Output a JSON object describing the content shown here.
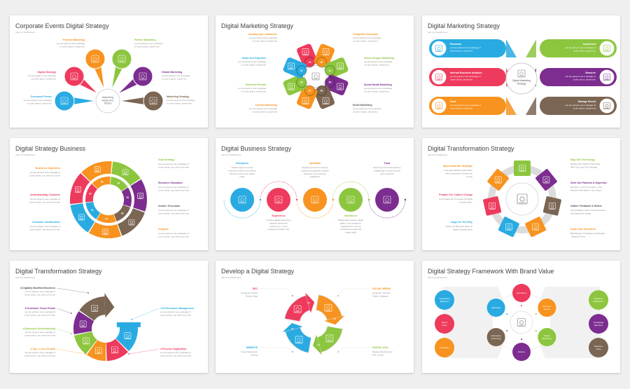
{
  "colors": {
    "blue": "#29abe2",
    "red": "#ee3a5c",
    "orange": "#f7931e",
    "green": "#8cc63f",
    "purple": "#7c2d8f",
    "brown": "#7b6553",
    "dark": "#555555"
  },
  "slides": [
    {
      "title": "Corporate Events Digital Strategy",
      "subtitle": "Add Your Subtitle Here",
      "center": [
        "Marketing",
        "Adapt And",
        "Tactics"
      ],
      "items": [
        {
          "label": "Product Marketing",
          "color": "orange",
          "icon": "network-icon",
          "desc": [
            "you are going to use a passage",
            "of Lorem Ipsum, simple text"
          ]
        },
        {
          "label": "Partner Marketing",
          "color": "green",
          "icon": "hub-icon",
          "desc": [
            "you are going to use a passage",
            "of Lorem Ipsum, simple text"
          ]
        },
        {
          "label": "Digital Strategy",
          "color": "red",
          "icon": "document-icon",
          "desc": [
            "you are going to use a passage",
            "of Lorem Ipsum, simple text"
          ]
        },
        {
          "label": "Global Marketing",
          "color": "purple",
          "icon": "globe-icon",
          "desc": [
            "you are going to use a passage",
            "of Lorem Ipsum, simple text"
          ]
        },
        {
          "label": "Document Printer",
          "color": "blue",
          "icon": "calendar-icon",
          "desc": [
            "you are going to use a passage",
            "of Lorem Ipsum, simple text"
          ]
        },
        {
          "label": "Marketing Strategy",
          "color": "brown",
          "icon": "chart-icon",
          "desc": [
            "you are going to use a passage",
            "of Lorem Ipsum, simple text"
          ]
        }
      ]
    },
    {
      "title": "Digital Marketing Strategy",
      "subtitle": "",
      "items": [
        {
          "label": "Identify your customers",
          "color": "orange",
          "petal": "red",
          "num": "02",
          "desc": [
            "you are going to use a passage",
            "of Lorem Ipsum, simple text"
          ]
        },
        {
          "label": "Competitor Research",
          "color": "orange",
          "petal": "orange",
          "num": "03",
          "desc": [
            "you are going to use a passage",
            "of Lorem Ipsum, simple text"
          ]
        },
        {
          "label": "Search Engine Marketing",
          "color": "green",
          "petal": "green",
          "num": "04",
          "desc": [
            "you are going to use a passage",
            "of Lorem Ipsum, simple text"
          ]
        },
        {
          "label": "Social Media Marketing",
          "color": "purple",
          "petal": "purple",
          "num": "05",
          "desc": [
            "you are going to use a passage",
            "of Lorem Ipsum, simple text"
          ]
        },
        {
          "label": "Email Marketing",
          "color": "dark",
          "petal": "brown",
          "num": "06",
          "desc": [
            "you are going to use a passage",
            "of Lorem Ipsum, simple text"
          ]
        },
        {
          "label": "Content Marketing",
          "color": "orange",
          "petal": "orange",
          "num": "07",
          "desc": [
            "you are going to use a passage",
            "of Lorem Ipsum, simple text"
          ]
        },
        {
          "label": "Relevant Results",
          "color": "green",
          "petal": "green",
          "num": "08",
          "desc": [
            "you are going to use a passage",
            "of Lorem Ipsum, simple text"
          ]
        },
        {
          "label": "Goals and Objective",
          "color": "blue",
          "petal": "blue",
          "num": "01",
          "desc": [
            "you are going to use a passage",
            "of Lorem Ipsum, simple text"
          ]
        }
      ]
    },
    {
      "title": "Digital Marketing Strategy",
      "subtitle": "Add Your Subtitle Here",
      "center": [
        "Digital Marketing",
        "Strategy"
      ],
      "items": [
        {
          "label": "Research",
          "color": "blue",
          "desc": [
            "you are going to use a passage of",
            "Lorem Ipsum, simple text"
          ]
        },
        {
          "label": "Internal Business Analysis",
          "color": "red",
          "desc": [
            "you are going to use a passage of",
            "Lorem Ipsum, simple text"
          ]
        },
        {
          "label": "Goal",
          "color": "orange",
          "desc": [
            "you are going to use a passage of",
            "Lorem Ipsum, simple text"
          ]
        },
        {
          "label": "Implement",
          "color": "green",
          "desc": [
            "you are going to use a passage of",
            "Lorem Ipsum, simple text"
          ]
        },
        {
          "label": "Measure",
          "color": "purple",
          "desc": [
            "you are going to use a passage of",
            "Lorem Ipsum, simple text"
          ]
        },
        {
          "label": "Manage Result",
          "color": "brown",
          "desc": [
            "you are going to use a passage of",
            "Lorem Ipsum, simple text"
          ]
        }
      ]
    },
    {
      "title": "Digital Strategy Business",
      "subtitle": "Add Your Subtitle Here",
      "segments": [
        {
          "color": "orange",
          "num": "03"
        },
        {
          "color": "green",
          "num": "04"
        },
        {
          "color": "purple",
          "num": "05"
        },
        {
          "color": "brown",
          "num": "06"
        },
        {
          "color": "orange",
          "num": "07"
        },
        {
          "color": "blue",
          "num": "01"
        },
        {
          "color": "red",
          "num": "02"
        }
      ],
      "items": [
        {
          "label": "Business Objectives",
          "color": "orange",
          "desc": [
            "you are going to use a passage of",
            "Lorem Ipsum, you need to be sure"
          ]
        },
        {
          "label": "Understanding Customer",
          "color": "red",
          "desc": [
            "you are going to use a passage of",
            "Lorem Ipsum, you need to be sure"
          ]
        },
        {
          "label": "Customer Identification",
          "color": "blue",
          "desc": [
            "you are going to use a passage of",
            "Lorem Ipsum, you need to be sure"
          ]
        },
        {
          "label": "Goal Strategy",
          "color": "green",
          "desc": [
            "you are going to use a passage of",
            "Lorem Ipsum, you need to be sure"
          ]
        },
        {
          "label": "Resource Allocation",
          "color": "purple",
          "desc": [
            "you are going to use a passage of",
            "Lorem Ipsum, you need to be sure"
          ]
        },
        {
          "label": "Action / Execution",
          "color": "dark",
          "desc": [
            "you are going to use a passage of",
            "Lorem Ipsum, you need to be sure"
          ]
        },
        {
          "label": "Analysis",
          "color": "orange",
          "desc": [
            "you are going to use a passage of",
            "Lorem Ipsum, you need to be sure"
          ]
        }
      ]
    },
    {
      "title": "Digital Business Strategy",
      "subtitle": "Add Your Subtitle Here",
      "items": [
        {
          "label": "Disruption",
          "color": "blue",
          "desc": [
            "Transformaty & recovery",
            "business models and products",
            "that don't exist in the market",
            "today"
          ]
        },
        {
          "label": "Experience",
          "color": "red",
          "desc": [
            "Creating digital interactions",
            "between clients and",
            "customers in a more",
            "engaging excellent way"
          ]
        },
        {
          "label": "Operation",
          "color": "orange",
          "desc": [
            "Digitizing process to improve",
            "employee productivity, supplier",
            "interaction, and customer",
            "satisfaction"
          ]
        },
        {
          "label": "Workforce",
          "color": "green",
          "desc": [
            "Digital agility requires digital",
            "agility in your workforce.",
            "Organizations must be",
            "provided by people with",
            "today's skills"
          ]
        },
        {
          "label": "Trust",
          "color": "purple",
          "desc": [
            "Ensuring secure information is",
            "a digital age in to give trust by",
            "your customers"
          ]
        }
      ]
    },
    {
      "title": "Digital Transformation Strategy",
      "subtitle": "Add Your Subtitle Here",
      "tiles": [
        "green",
        "purple",
        "brown",
        "orange",
        "blue",
        "red",
        "orange"
      ],
      "items": [
        {
          "label": "Start Small But Strategic",
          "color": "orange",
          "desc": [
            "Jump start digital transformation",
            "with an impactful, focused use",
            "of time"
          ]
        },
        {
          "label": "Prepare For Culture Change",
          "color": "red",
          "desc": [
            "Put Forward and The Heart Of Digital",
            "Transformation"
          ]
        },
        {
          "label": "Align On The Why",
          "color": "blue",
          "desc": [
            "Define The Business Value Of",
            "Digital Transformation"
          ]
        },
        {
          "label": "Map Out Technology",
          "color": "green",
          "desc": [
            "Identify Tech Solution That Scale",
            "With Your Long Term Strategy"
          ]
        },
        {
          "label": "Seek Out Partners & Expertise",
          "color": "purple",
          "desc": [
            "Be Clever - Don't Go It Alone - Find",
            "Partners That Share In Your Vision"
          ]
        },
        {
          "label": "Gather Feedback & Refine",
          "color": "dark",
          "desc": [
            "Get Feedback, Learn From Experience",
            "And Adjust Accordingly"
          ]
        },
        {
          "label": "Scale And Transform",
          "color": "orange",
          "desc": [
            "Build Ready To Replicate And Manage",
            "- Measure Them"
          ]
        }
      ]
    },
    {
      "title": "Digital Transformation Strategy",
      "subtitle": "Add Your Subtitle Here",
      "items": [
        {
          "label": "6.Digitally Modified Business",
          "color": "dark",
          "seg": "brown",
          "desc": [
            "you are going to use a passage of",
            "Lorem Ipsum, you need to be sure"
          ]
        },
        {
          "label": "5.Customer Touch Points",
          "color": "purple",
          "seg": "purple",
          "desc": [
            "you are going to use a passage of",
            "Lorem Ipsum, you need to be sure"
          ]
        },
        {
          "label": "4.Employee Understanding",
          "color": "green",
          "seg": "green",
          "desc": [
            "you are going to use a passage of",
            "Lorem Ipsum, you need to be sure"
          ]
        },
        {
          "label": "3.Top -> Line Growth",
          "color": "orange",
          "seg": "orange",
          "desc": [
            "you are going to use a passage of",
            "Lorem Ipsum, you need to be sure"
          ]
        },
        {
          "label": "1.Performance Management",
          "color": "blue",
          "seg": "blue",
          "desc": [
            "you are going to use a passage of",
            "Lorem Ipsum, you need to be sure"
          ]
        },
        {
          "label": "2.Process Digitization",
          "color": "red",
          "seg": "red",
          "desc": [
            "you are going to use a passage of",
            "Lorem Ipsum, you need to be sure"
          ]
        }
      ]
    },
    {
      "title": "Develop a Digital Strategy",
      "subtitle": "Add Your Subtitle Here",
      "items": [
        {
          "label": "SEO",
          "color": "red",
          "num": "02",
          "desc": [
            "Keywords Content",
            "Position Data"
          ]
        },
        {
          "label": "SOCIAL MEDIA",
          "color": "orange",
          "num": "03",
          "desc": [
            "Facebook, YouTube",
            "Twitter, Instagram"
          ]
        },
        {
          "label": "DIGITAL ADS",
          "color": "green",
          "num": "04",
          "desc": [
            "Display Advertisement",
            "PPC , Email"
          ]
        },
        {
          "label": "WEBSITE",
          "color": "blue",
          "num": "01",
          "desc": [
            "Smart Responsive",
            "Hosting"
          ]
        }
      ]
    },
    {
      "title": "Digital Strategy Framework With Brand Value",
      "subtitle": "Add Your Subtitle Here",
      "ring": [
        {
          "label": [
            "Operations"
          ],
          "color": "red"
        },
        {
          "label": [
            "Customer",
            "Service"
          ],
          "color": "orange"
        },
        {
          "label": [
            "Human",
            "Resources"
          ],
          "color": "green"
        },
        {
          "label": [
            "Finance"
          ],
          "color": "purple"
        },
        {
          "label": [
            "Information",
            "Technology"
          ],
          "color": "brown"
        },
        {
          "label": [
            "Marketing"
          ],
          "color": "blue"
        }
      ],
      "left": [
        {
          "label": [
            "Operational",
            "Efficiency"
          ],
          "color": "blue"
        },
        {
          "label": [
            "Brand",
            "Value"
          ],
          "color": "red"
        },
        {
          "label": [
            "Innovation"
          ],
          "color": "orange"
        }
      ],
      "right": [
        {
          "label": [
            "Customer",
            "Satisfaction"
          ],
          "color": "green"
        },
        {
          "label": [
            "Knowledge",
            "Retention"
          ],
          "color": "purple"
        },
        {
          "label": [
            "Business",
            "Value"
          ],
          "color": "brown"
        }
      ]
    }
  ]
}
